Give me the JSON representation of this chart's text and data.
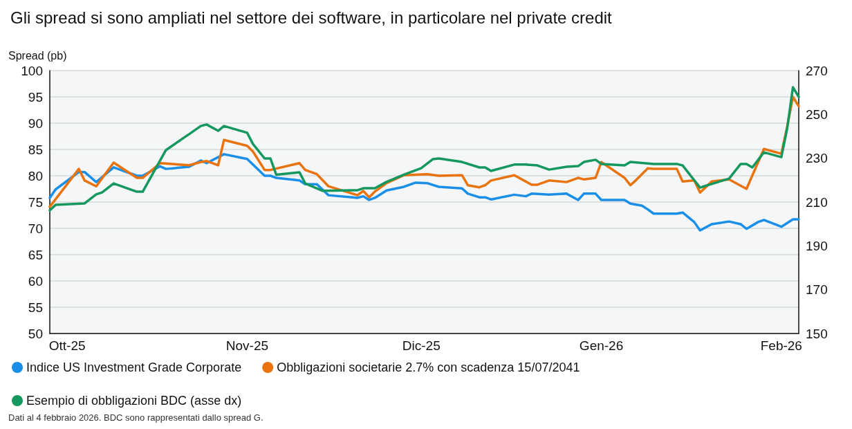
{
  "chart_data": {
    "type": "line",
    "title": "Gli spread si sono ampliati nel settore dei software, in particolare nel private credit",
    "ylabel": "Spread (pb)",
    "annotations": [
      "Dati al 4 febbraio 2026. BDC sono rappresentati dallo spread G."
    ],
    "xlim": [
      "2025-09-28",
      "2026-02-04"
    ],
    "xticks": [
      {
        "value": "2025-10-01",
        "label": "Ott-25"
      },
      {
        "value": "2025-11-01",
        "label": "Nov-25"
      },
      {
        "value": "2025-12-01",
        "label": "Dic-25"
      },
      {
        "value": "2026-01-01",
        "label": "Gen-26"
      },
      {
        "value": "2026-02-01",
        "label": "Feb-26"
      }
    ],
    "ylim": [
      50,
      100
    ],
    "yticks": [
      50,
      55,
      60,
      65,
      70,
      75,
      80,
      85,
      90,
      95,
      100
    ],
    "y2lim": [
      150,
      270
    ],
    "y2ticks": [
      150,
      170,
      190,
      210,
      230,
      250,
      270
    ],
    "grid": "y",
    "legend": "bottom",
    "marker": "none",
    "line_style": "solid",
    "series": [
      {
        "name": "Indice US Investment Grade Corporate",
        "color": "#1a8fe8",
        "x": [
          "2025-09-28",
          "2025-09-29",
          "2025-10-03",
          "2025-10-04",
          "2025-10-06",
          "2025-10-09",
          "2025-10-13",
          "2025-10-14",
          "2025-10-17",
          "2025-10-18",
          "2025-10-22",
          "2025-10-24",
          "2025-10-25",
          "2025-10-28",
          "2025-11-01",
          "2025-11-04",
          "2025-11-05",
          "2025-11-06",
          "2025-11-10",
          "2025-11-11",
          "2025-11-13",
          "2025-11-15",
          "2025-11-20",
          "2025-11-21",
          "2025-11-22",
          "2025-11-23",
          "2025-11-25",
          "2025-11-28",
          "2025-11-30",
          "2025-12-02",
          "2025-12-04",
          "2025-12-08",
          "2025-12-09",
          "2025-12-11",
          "2025-12-12",
          "2025-12-13",
          "2025-12-17",
          "2025-12-19",
          "2025-12-20",
          "2025-12-23",
          "2025-12-26",
          "2025-12-28",
          "2025-12-29",
          "2025-12-31",
          "2026-01-01",
          "2026-01-05",
          "2026-01-06",
          "2026-01-08",
          "2026-01-09",
          "2026-01-10",
          "2026-01-14",
          "2026-01-15",
          "2026-01-17",
          "2026-01-18",
          "2026-01-20",
          "2026-01-23",
          "2026-01-25",
          "2026-01-26",
          "2026-01-28",
          "2026-01-29",
          "2026-02-01",
          "2026-02-03",
          "2026-02-04"
        ],
        "values": [
          75.8,
          77.4,
          80.7,
          80.7,
          78.8,
          81.6,
          80.0,
          80.0,
          81.8,
          81.3,
          81.7,
          82.9,
          82.4,
          84.1,
          83.2,
          80.0,
          80.0,
          79.6,
          79.1,
          78.4,
          78.4,
          76.3,
          75.8,
          76.1,
          75.4,
          75.8,
          77.2,
          77.9,
          78.7,
          78.6,
          77.9,
          77.6,
          76.6,
          75.9,
          75.9,
          75.5,
          76.4,
          76.1,
          76.6,
          76.4,
          76.6,
          75.4,
          76.6,
          76.6,
          75.4,
          75.4,
          74.7,
          74.3,
          73.6,
          72.8,
          72.8,
          73.0,
          71.2,
          69.6,
          70.8,
          71.3,
          70.8,
          69.9,
          71.2,
          71.6,
          70.3,
          71.7,
          71.7
        ]
      },
      {
        "name": "Obbligazioni societarie 2.7% con scadenza 15/07/2041",
        "color": "#e8730f",
        "x": [
          "2025-09-28",
          "2025-10-03",
          "2025-10-04",
          "2025-10-06",
          "2025-10-09",
          "2025-10-13",
          "2025-10-14",
          "2025-10-17",
          "2025-10-22",
          "2025-10-24",
          "2025-10-25",
          "2025-10-27",
          "2025-10-28",
          "2025-11-01",
          "2025-11-02",
          "2025-11-04",
          "2025-11-05",
          "2025-11-10",
          "2025-11-11",
          "2025-11-13",
          "2025-11-15",
          "2025-11-20",
          "2025-11-21",
          "2025-11-22",
          "2025-11-23",
          "2025-11-25",
          "2025-11-28",
          "2025-12-02",
          "2025-12-04",
          "2025-12-08",
          "2025-12-09",
          "2025-12-11",
          "2025-12-12",
          "2025-12-13",
          "2025-12-17",
          "2025-12-19",
          "2025-12-20",
          "2025-12-21",
          "2025-12-23",
          "2025-12-26",
          "2025-12-28",
          "2025-12-29",
          "2025-12-31",
          "2026-01-01",
          "2026-01-05",
          "2026-01-06",
          "2026-01-07",
          "2026-01-09",
          "2026-01-10",
          "2026-01-14",
          "2026-01-15",
          "2026-01-17",
          "2026-01-18",
          "2026-01-20",
          "2026-01-23",
          "2026-01-26",
          "2026-01-29",
          "2026-02-01",
          "2026-02-02",
          "2026-02-03",
          "2026-02-04"
        ],
        "values": [
          74.1,
          81.3,
          79.1,
          78.0,
          82.5,
          79.6,
          79.6,
          82.4,
          82.0,
          82.6,
          82.8,
          82.0,
          86.8,
          85.7,
          84.6,
          81.1,
          81.1,
          82.4,
          81.1,
          80.3,
          78.0,
          76.3,
          77.1,
          75.9,
          77.0,
          78.6,
          80.1,
          80.3,
          80.0,
          80.1,
          78.2,
          77.8,
          78.2,
          79.1,
          80.1,
          78.9,
          78.3,
          78.3,
          79.1,
          78.8,
          79.6,
          79.3,
          79.6,
          82.6,
          79.6,
          78.2,
          79.2,
          81.4,
          81.3,
          81.3,
          78.9,
          79.1,
          76.8,
          78.9,
          79.3,
          77.5,
          85.1,
          84.2,
          89.3,
          95.0,
          93.2
        ]
      },
      {
        "name": "Esempio di obbligazioni BDC (asse dx)",
        "color": "#14985e",
        "axis": "y2",
        "x": [
          "2025-09-28",
          "2025-09-29",
          "2025-10-04",
          "2025-10-06",
          "2025-10-07",
          "2025-10-09",
          "2025-10-13",
          "2025-10-14",
          "2025-10-18",
          "2025-10-22",
          "2025-10-24",
          "2025-10-25",
          "2025-10-27",
          "2025-10-28",
          "2025-11-01",
          "2025-11-02",
          "2025-11-04",
          "2025-11-05",
          "2025-11-06",
          "2025-11-10",
          "2025-11-11",
          "2025-11-14",
          "2025-11-20",
          "2025-11-21",
          "2025-11-23",
          "2025-11-25",
          "2025-11-28",
          "2025-11-30",
          "2025-12-01",
          "2025-12-03",
          "2025-12-04",
          "2025-12-08",
          "2025-12-11",
          "2025-12-12",
          "2025-12-13",
          "2025-12-17",
          "2025-12-19",
          "2025-12-21",
          "2025-12-23",
          "2025-12-26",
          "2025-12-28",
          "2025-12-29",
          "2025-12-31",
          "2026-01-01",
          "2026-01-05",
          "2026-01-06",
          "2026-01-10",
          "2026-01-14",
          "2026-01-15",
          "2026-01-18",
          "2026-01-23",
          "2026-01-25",
          "2026-01-26",
          "2026-01-27",
          "2026-01-29",
          "2026-02-01",
          "2026-02-02",
          "2026-02-03",
          "2026-02-04"
        ],
        "values": [
          206.2,
          208.7,
          209.4,
          213.5,
          214.4,
          218.5,
          214.7,
          214.7,
          233.7,
          241.0,
          244.7,
          245.4,
          242.5,
          244.7,
          241.6,
          236.5,
          229.9,
          229.9,
          222.5,
          223.6,
          218.5,
          215.1,
          215.4,
          216.3,
          216.3,
          219.2,
          222.5,
          224.5,
          225.5,
          229.6,
          229.9,
          228.3,
          225.8,
          225.8,
          224.2,
          227.1,
          227.1,
          226.7,
          224.8,
          226.1,
          226.4,
          228.3,
          229.3,
          227.4,
          226.7,
          228.3,
          227.4,
          227.4,
          226.7,
          216.6,
          220.7,
          227.4,
          227.4,
          225.8,
          232.7,
          230.5,
          243.5,
          262.4,
          258.0
        ]
      }
    ]
  }
}
